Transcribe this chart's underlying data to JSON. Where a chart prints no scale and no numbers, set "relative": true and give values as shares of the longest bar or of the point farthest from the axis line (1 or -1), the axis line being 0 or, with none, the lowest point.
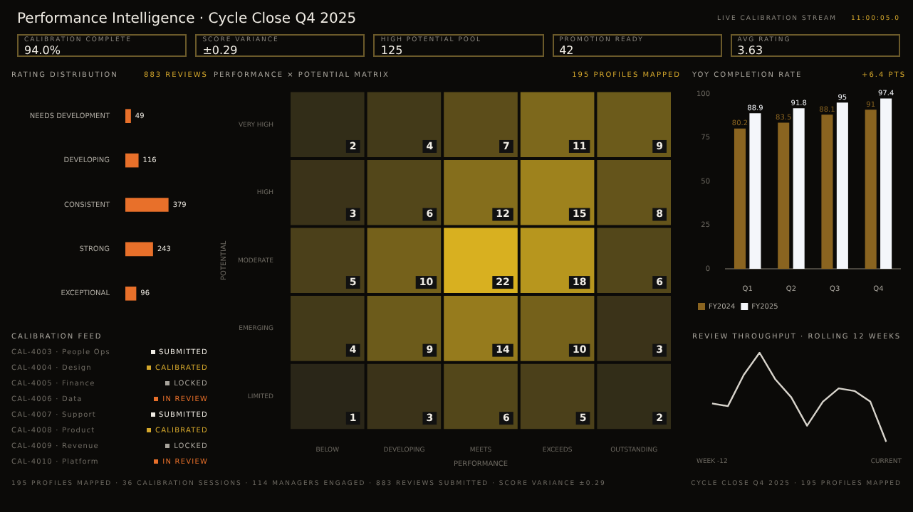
{
  "chart_data": [
    {
      "type": "other",
      "title": "Performance Intelligence · Cycle Close Q4 2025",
      "annotations": [
        "LIVE CALIBRATION STREAM",
        "11:00:05.0"
      ]
    },
    {
      "type": "other",
      "categories": [
        "CALIBRATION COMPLETE",
        "SCORE VARIANCE",
        "HIGH POTENTIAL POOL",
        "PROMOTION READY",
        "AVG RATING"
      ],
      "annotations": [
        "94.0%",
        "±0.29",
        "125",
        "42",
        "3.63"
      ]
    },
    {
      "type": "bar",
      "orientation": "horizontal",
      "title": "RATING DISTRIBUTION",
      "subtitle": "883 REVIEWS",
      "categories": [
        "NEEDS DEVELOPMENT",
        "DEVELOPING",
        "CONSISTENT",
        "STRONG",
        "EXCEPTIONAL"
      ],
      "values": [
        49,
        116,
        379,
        243,
        96
      ],
      "color": "#e8702a",
      "data_labels": true,
      "tick_labels": "y",
      "grid": false,
      "legend": false
    },
    {
      "type": "other",
      "title": "CALIBRATION FEED",
      "categories": [
        "CAL-4003 · People Ops",
        "CAL-4004 · Design",
        "CAL-4005 · Finance",
        "CAL-4006 · Data",
        "CAL-4007 · Support",
        "CAL-4008 · Product",
        "CAL-4009 · Revenue",
        "CAL-4010 · Platform"
      ],
      "annotations": [
        "SUBMITTED",
        "CALIBRATED",
        "LOCKED",
        "IN REVIEW",
        "SUBMITTED",
        "CALIBRATED",
        "LOCKED",
        "IN REVIEW"
      ],
      "colors": [
        "#f0ece4",
        "#d4a72c",
        "#a8a49c",
        "#e8702a",
        "#f0ece4",
        "#d4a72c",
        "#a8a49c",
        "#e8702a"
      ]
    },
    {
      "type": "heatmap",
      "title": "PERFORMANCE × POTENTIAL MATRIX",
      "subtitle": "195 PROFILES MAPPED",
      "xlabel": "PERFORMANCE",
      "ylabel": "POTENTIAL",
      "categories": [
        "BELOW",
        "DEVELOPING",
        "MEETS",
        "EXCEEDS",
        "OUTSTANDING"
      ],
      "y_categories": [
        "VERY HIGH",
        "HIGH",
        "MODERATE",
        "EMERGING",
        "LIMITED"
      ],
      "cells": [
        [
          2,
          4,
          7,
          11,
          9
        ],
        [
          3,
          6,
          12,
          15,
          8
        ],
        [
          5,
          10,
          22,
          18,
          6
        ],
        [
          4,
          9,
          14,
          10,
          3
        ],
        [
          1,
          3,
          6,
          5,
          2
        ]
      ],
      "data_labels": true,
      "grid": false,
      "legend": false
    },
    {
      "type": "bar",
      "title": "YOY COMPLETION RATE",
      "subtitle": "+6.4 PTS",
      "categories": [
        "Q1",
        "Q2",
        "Q3",
        "Q4"
      ],
      "series": [
        {
          "name": "FY2024",
          "color": "#8a6420",
          "values": [
            80.2,
            83.5,
            88.1,
            91.0
          ]
        },
        {
          "name": "FY2025",
          "color": "#f4f6fa",
          "values": [
            88.9,
            91.8,
            95.0,
            97.4
          ]
        }
      ],
      "ylim": [
        0,
        100
      ],
      "yticks": [
        0,
        25,
        50,
        75,
        100
      ],
      "data_labels": true,
      "grid": false,
      "legend": "bottom"
    },
    {
      "type": "line",
      "title": "REVIEW THROUGHPUT · ROLLING 12 WEEKS",
      "relative": true,
      "categories": [
        "WEEK -12",
        null,
        null,
        null,
        null,
        null,
        null,
        null,
        null,
        null,
        null,
        "CURRENT"
      ],
      "values": [
        0.43,
        0.4,
        0.75,
        1.0,
        0.7,
        0.5,
        0.18,
        0.45,
        0.6,
        0.57,
        0.45,
        0.0
      ],
      "color": "#d8d4cc",
      "marker": "none",
      "line_style": "solid",
      "grid": false,
      "legend": false
    },
    {
      "type": "other",
      "annotations": [
        "195 PROFILES MAPPED · 36 CALIBRATION SESSIONS · 114 MANAGERS ENGAGED · 883 REVIEWS SUBMITTED · SCORE VARIANCE ±0.29",
        "CYCLE CLOSE Q4 2025 · 195 PROFILES MAPPED"
      ]
    }
  ]
}
